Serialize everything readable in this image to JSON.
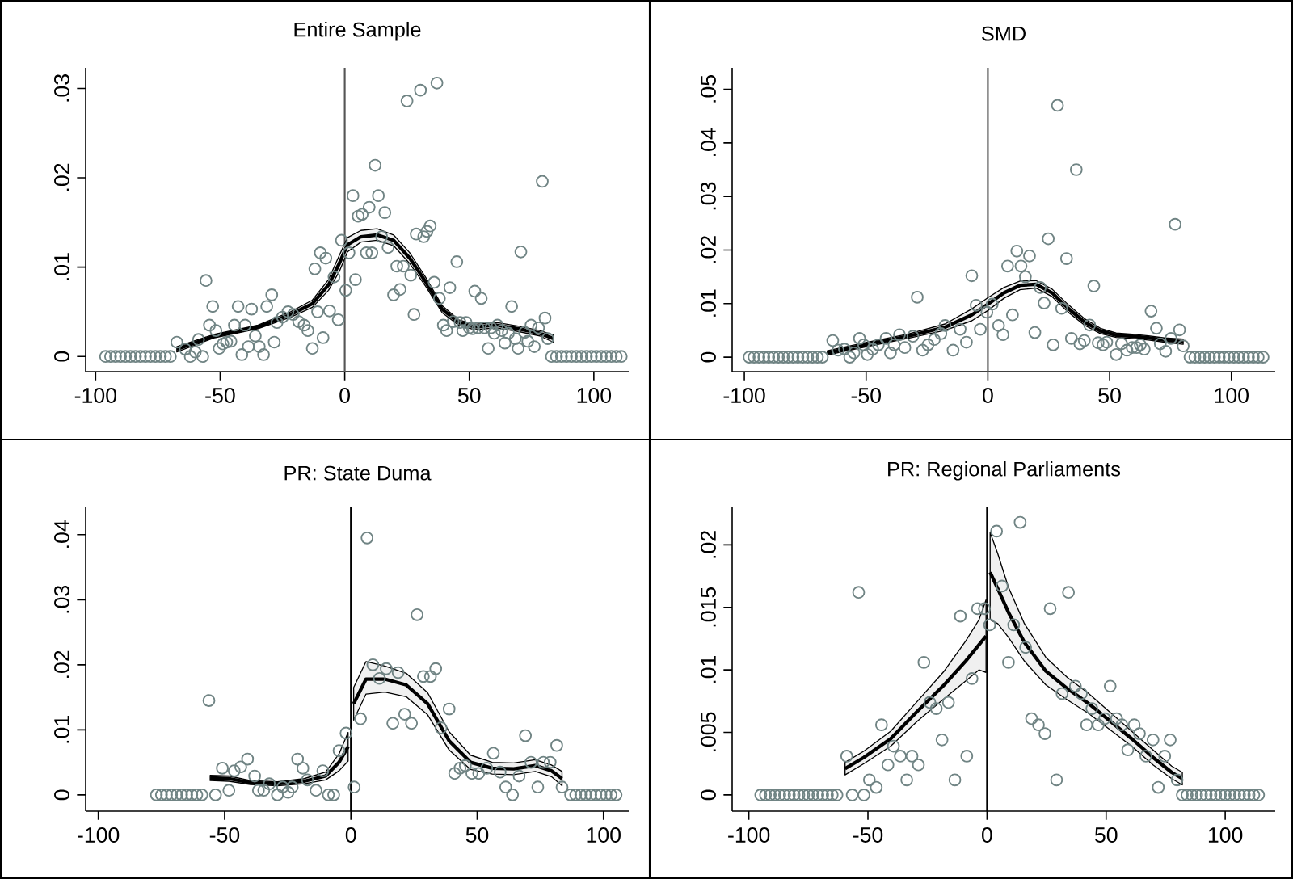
{
  "chart_data": [
    {
      "type": "scatter",
      "title": "Entire Sample",
      "xlim": [
        -104,
        114
      ],
      "xticks": [
        -100,
        -50,
        0,
        50,
        100
      ],
      "ylim": [
        -0.0017,
        0.0323
      ],
      "yticks": [
        0,
        {
          "value": 0.01,
          "label": ".01"
        },
        {
          "value": 0.02,
          "label": ".02"
        },
        {
          "value": 0.03,
          "label": ".03"
        }
      ],
      "ref_lines": [
        {
          "axis": "x",
          "value": 0,
          "color": "#555555"
        }
      ],
      "series": [
        {
          "color": "#708484",
          "marker": "circle",
          "x": [
            -96,
            -94,
            -92,
            -90,
            -88,
            -86,
            -84,
            -82,
            -80,
            -78,
            -76,
            -74,
            -72,
            -70,
            -67.4,
            -64,
            -62,
            -60,
            -58.7,
            -57,
            -55.7,
            -54.3,
            -53,
            -51.7,
            -50.4,
            -48.9,
            -47.4,
            -45.7,
            -44.3,
            -42.8,
            -41.3,
            -40,
            -38.7,
            -37.4,
            -35.9,
            -34.3,
            -32.6,
            -31.3,
            -29.3,
            -28.3,
            -27.2,
            -25,
            -22.8,
            -20.7,
            -18.5,
            -16.3,
            -14.8,
            -13,
            -12,
            -10.9,
            -9.8,
            -8.7,
            -7.6,
            -6.1,
            -4.3,
            -2.6,
            -1.3,
            0.4,
            1.7,
            3.3,
            4.3,
            5.4,
            7,
            8.7,
            9.8,
            10.9,
            12.2,
            13.5,
            14.8,
            16.1,
            17.4,
            19.6,
            20.9,
            22.2,
            23.5,
            25,
            26.5,
            27.8,
            28.7,
            30.4,
            31.7,
            33,
            34.3,
            35.9,
            37,
            38,
            39.6,
            40.9,
            42.2,
            43.5,
            45,
            46.3,
            47.4,
            48.7,
            50,
            51.3,
            52.2,
            53.5,
            54.8,
            56.1,
            57.6,
            58.7,
            60,
            61.3,
            63,
            64.3,
            65.7,
            67,
            68.5,
            69.6,
            70.7,
            72.2,
            73.5,
            74.8,
            76.1,
            77.8,
            79.3,
            80.4,
            81.5,
            83,
            85,
            87,
            89,
            91,
            93,
            95,
            97,
            99,
            101,
            103,
            105,
            107,
            109,
            111
          ],
          "values": [
            0,
            0,
            0,
            0,
            0,
            0,
            0,
            0,
            0,
            0,
            0,
            0,
            0,
            0,
            0.0016,
            0.0008,
            0,
            0.0005,
            0.0019,
            0,
            0.0085,
            0.0035,
            0.0056,
            0.0029,
            0.0009,
            0.0014,
            0.0016,
            0.0017,
            0.0035,
            0.0056,
            0.0002,
            0.0035,
            0.0011,
            0.0053,
            0.0023,
            0.0011,
            0.0002,
            0.0056,
            0.0069,
            0.0016,
            0.0038,
            0.0044,
            0.005,
            0.0047,
            0.0039,
            0.0035,
            0.0029,
            0.0009,
            0.0098,
            0.005,
            0.0116,
            0.0021,
            0.011,
            0.0051,
            0.0089,
            0.0041,
            0.013,
            0.0074,
            0.0116,
            0.018,
            0.0086,
            0.0157,
            0.0159,
            0.0116,
            0.0167,
            0.0116,
            0.0214,
            0.018,
            0.0134,
            0.0161,
            0.0122,
            0.0069,
            0.0101,
            0.0075,
            0.0101,
            0.0286,
            0.0091,
            0.0047,
            0.0137,
            0.0298,
            0.0134,
            0.014,
            0.0146,
            0.0083,
            0.0306,
            0.0065,
            0.0035,
            0.0029,
            0.0077,
            0.0039,
            0.0106,
            0.0038,
            0.0029,
            0.0038,
            0.0032,
            0.0031,
            0.0073,
            0.0032,
            0.0065,
            0.0032,
            0.0009,
            0.0032,
            0.0026,
            0.0035,
            0.0029,
            0.0015,
            0.0026,
            0.0056,
            0.002,
            0.0009,
            0.0117,
            0.0027,
            0.0017,
            0.0035,
            0.0011,
            0.0032,
            0.0196,
            0.0043,
            0.002,
            0,
            0,
            0,
            0,
            0,
            0,
            0,
            0,
            0,
            0,
            0,
            0,
            0,
            0,
            0
          ]
        },
        {
          "type": "line",
          "color": "#000000",
          "x": [
            -67.4,
            -52.2,
            -34.8,
            -21.7,
            -13,
            -6.5,
            -2.2,
            1.1,
            6.5,
            13,
            19.6,
            26.1,
            32.6,
            39.1,
            45.7,
            52.2,
            60.9,
            69.6,
            78.3,
            83.7
          ],
          "values": [
            0.0008,
            0.0023,
            0.0033,
            0.0047,
            0.0059,
            0.008,
            0.0104,
            0.0125,
            0.0134,
            0.0136,
            0.013,
            0.011,
            0.0083,
            0.0053,
            0.0038,
            0.0033,
            0.0035,
            0.0031,
            0.0026,
            0.002
          ],
          "lower": [
            0.0005,
            0.0021,
            0.0031,
            0.0044,
            0.0055,
            0.0074,
            0.0095,
            0.0117,
            0.0128,
            0.013,
            0.0124,
            0.0104,
            0.0078,
            0.0049,
            0.0035,
            0.003,
            0.0032,
            0.0028,
            0.0023,
            0.0016
          ],
          "upper": [
            0.0011,
            0.0025,
            0.0035,
            0.005,
            0.0063,
            0.0086,
            0.0113,
            0.0133,
            0.0141,
            0.0143,
            0.0136,
            0.0116,
            0.0088,
            0.0057,
            0.0041,
            0.0036,
            0.0038,
            0.0034,
            0.0029,
            0.0024
          ]
        }
      ]
    },
    {
      "type": "scatter",
      "title": "SMD",
      "xlim": [
        -105,
        118
      ],
      "xticks": [
        -100,
        -50,
        0,
        50,
        100
      ],
      "ylim": [
        -0.0027,
        0.054
      ],
      "yticks": [
        0,
        {
          "value": 0.01,
          "label": ".01"
        },
        {
          "value": 0.02,
          "label": ".02"
        },
        {
          "value": 0.03,
          "label": ".03"
        },
        {
          "value": 0.04,
          "label": ".04"
        },
        {
          "value": 0.05,
          "label": ".05"
        }
      ],
      "ref_lines": [
        {
          "axis": "x",
          "value": 0,
          "color": "#555555"
        }
      ],
      "series": [
        {
          "color": "#708484",
          "marker": "circle",
          "x": [
            -98,
            -96,
            -94,
            -92,
            -90,
            -88,
            -86,
            -84,
            -82,
            -80,
            -78,
            -76,
            -74,
            -72,
            -70,
            -68,
            -63.7,
            -61.5,
            -58.9,
            -56.7,
            -55,
            -52.7,
            -51,
            -49.5,
            -47.3,
            -45,
            -41.8,
            -40,
            -38.5,
            -36.3,
            -34.1,
            -30.8,
            -29,
            -26.8,
            -24.6,
            -22,
            -19.3,
            -17.6,
            -14.3,
            -11.4,
            -8.8,
            -6.6,
            -4.8,
            -3.1,
            -0.4,
            1.8,
            4.4,
            6.2,
            8.1,
            10.1,
            11.9,
            13.6,
            15.4,
            17.1,
            19.3,
            21.5,
            23.1,
            24.8,
            26.8,
            28.6,
            30.3,
            32.3,
            34.3,
            36.3,
            37.8,
            39.6,
            41.8,
            43.5,
            45.3,
            47.3,
            48.8,
            52.7,
            54.9,
            57.1,
            59.3,
            61.1,
            62.6,
            64.2,
            67,
            69.2,
            70.8,
            73,
            75.2,
            76.9,
            78.7,
            80.2,
            83,
            85,
            87,
            89,
            91,
            93,
            95,
            97,
            99,
            101,
            103,
            105,
            107,
            109,
            111,
            113
          ],
          "values": [
            0,
            0,
            0,
            0,
            0,
            0,
            0,
            0,
            0,
            0,
            0,
            0,
            0,
            0,
            0,
            0,
            0.0031,
            0.0013,
            0.0015,
            0,
            0.0008,
            0.0035,
            0.0023,
            0.0005,
            0.0015,
            0.0023,
            0.0035,
            0.0008,
            0.0023,
            0.0042,
            0.0018,
            0.0039,
            0.0112,
            0.0013,
            0.0023,
            0.0033,
            0.0044,
            0.0059,
            0.0013,
            0.0052,
            0.0028,
            0.0152,
            0.0097,
            0.0052,
            0.0084,
            0.0099,
            0.0059,
            0.0042,
            0.017,
            0.0079,
            0.0198,
            0.017,
            0.015,
            0.0189,
            0.0046,
            0.013,
            0.0101,
            0.0221,
            0.0023,
            0.047,
            0.0091,
            0.0184,
            0.0035,
            0.035,
            0.0025,
            0.0031,
            0.006,
            0.0133,
            0.0027,
            0.0023,
            0.0028,
            0.0005,
            0.0025,
            0.0013,
            0.0018,
            0.0018,
            0.0023,
            0.0015,
            0.0086,
            0.0054,
            0.0025,
            0.0011,
            0.0035,
            0.0248,
            0.0051,
            0.0021,
            0,
            0,
            0,
            0,
            0,
            0,
            0,
            0,
            0,
            0,
            0,
            0,
            0,
            0,
            0,
            0
          ]
        },
        {
          "type": "line",
          "color": "#000000",
          "x": [
            -65.9,
            -50.5,
            -33,
            -17.6,
            -6.6,
            0,
            6.6,
            13.2,
            19.8,
            26.4,
            33,
            39.6,
            46.2,
            52.7,
            59.3,
            65.9,
            72.5,
            80.2
          ],
          "values": [
            0.0008,
            0.0023,
            0.0039,
            0.0056,
            0.0079,
            0.0099,
            0.012,
            0.0134,
            0.0136,
            0.012,
            0.0091,
            0.0066,
            0.0049,
            0.0041,
            0.0039,
            0.0036,
            0.0032,
            0.0029
          ],
          "lower": [
            0.0004,
            0.0019,
            0.0035,
            0.005,
            0.0068,
            0.0087,
            0.011,
            0.0126,
            0.0129,
            0.0113,
            0.0084,
            0.006,
            0.0044,
            0.0037,
            0.0035,
            0.0032,
            0.0028,
            0.0024
          ],
          "upper": [
            0.0012,
            0.0027,
            0.0043,
            0.0062,
            0.009,
            0.0111,
            0.013,
            0.0142,
            0.0143,
            0.0127,
            0.0098,
            0.0072,
            0.0054,
            0.0045,
            0.0043,
            0.004,
            0.0036,
            0.0034
          ]
        }
      ]
    },
    {
      "type": "scatter",
      "title": "PR: State Duma",
      "xlim": [
        -105,
        110
      ],
      "xticks": [
        -100,
        -50,
        0,
        50,
        100
      ],
      "ylim": [
        -0.0025,
        0.0442
      ],
      "yticks": [
        0,
        {
          "value": 0.01,
          "label": ".01"
        },
        {
          "value": 0.02,
          "label": ".02"
        },
        {
          "value": 0.03,
          "label": ".03"
        },
        {
          "value": 0.04,
          "label": ".04"
        }
      ],
      "ref_lines": [
        {
          "axis": "x",
          "value": 0,
          "color": "#000000"
        }
      ],
      "series": [
        {
          "color": "#708484",
          "marker": "circle",
          "x": [
            -77,
            -75,
            -73,
            -71,
            -69,
            -67,
            -65,
            -63,
            -61,
            -59,
            -56.2,
            -53.6,
            -50.9,
            -48.3,
            -46.2,
            -43.6,
            -40.9,
            -38.1,
            -36.6,
            -34.5,
            -32.3,
            -29.1,
            -27,
            -24.9,
            -23.2,
            -21.1,
            -19,
            -17.2,
            -13.8,
            -11.1,
            -8.9,
            -6.8,
            -4.7,
            -1.9,
            1.3,
            3.8,
            6.4,
            8.7,
            11.3,
            14,
            16.6,
            18.7,
            21.3,
            24,
            26.2,
            28.7,
            31.5,
            33.6,
            35.7,
            38.9,
            41.1,
            43.2,
            45.3,
            47.9,
            50.6,
            53.8,
            56.4,
            59.1,
            61.3,
            64,
            66.6,
            69.1,
            71.3,
            74,
            76.2,
            78.9,
            81.5,
            83.6,
            87,
            89,
            91,
            93,
            95,
            97,
            99,
            101,
            103,
            105
          ],
          "values": [
            0,
            0,
            0,
            0,
            0,
            0,
            0,
            0,
            0,
            0,
            0.0145,
            0,
            0.0041,
            0.0007,
            0.0037,
            0.0043,
            0.0055,
            0.0029,
            0.0007,
            0.0007,
            0.0017,
            0,
            0.0012,
            0.0004,
            0.0012,
            0.0055,
            0.0041,
            0.0023,
            0.0007,
            0.0037,
            0,
            0,
            0.0068,
            0.0095,
            0.0012,
            0.0117,
            0.0395,
            0.02,
            0.0179,
            0.0194,
            0.011,
            0.0188,
            0.0124,
            0.011,
            0.0277,
            0.0182,
            0.0182,
            0.0194,
            0.0103,
            0.0132,
            0.0033,
            0.0041,
            0.0045,
            0.0033,
            0.0033,
            0.0041,
            0.0064,
            0.0035,
            0.0012,
            0,
            0.0029,
            0.0091,
            0.005,
            0.0012,
            0.005,
            0.005,
            0.0076,
            0.0012,
            0,
            0,
            0,
            0,
            0,
            0,
            0,
            0,
            0,
            0
          ]
        },
        {
          "type": "line",
          "color": "#000000",
          "x": [
            -55.7,
            -48.3,
            -39.8,
            -29.1,
            -18.5,
            -10,
            -4.7,
            -1.1
          ],
          "values": [
            0.0026,
            0.0025,
            0.0019,
            0.0017,
            0.0021,
            0.0029,
            0.005,
            0.0074
          ],
          "lower": [
            0.0022,
            0.0021,
            0.0016,
            0.0014,
            0.0017,
            0.0023,
            0.0037,
            0.0052
          ],
          "upper": [
            0.003,
            0.0029,
            0.0022,
            0.002,
            0.0025,
            0.0035,
            0.0063,
            0.0096
          ]
        },
        {
          "type": "line",
          "color": "#000000",
          "x": [
            1.1,
            6,
            13.4,
            21.9,
            30.4,
            38.9,
            47.4,
            56,
            64.5,
            73,
            79.4,
            83.6
          ],
          "values": [
            0.014,
            0.0178,
            0.0178,
            0.0169,
            0.014,
            0.0083,
            0.005,
            0.0041,
            0.004,
            0.0045,
            0.0037,
            0.0025
          ],
          "lower": [
            0.0115,
            0.0155,
            0.0158,
            0.0151,
            0.0123,
            0.0069,
            0.0039,
            0.0032,
            0.0031,
            0.0036,
            0.0028,
            0.0014
          ],
          "upper": [
            0.0165,
            0.0205,
            0.0198,
            0.0187,
            0.0157,
            0.0097,
            0.0061,
            0.005,
            0.0049,
            0.0054,
            0.0046,
            0.0036
          ]
        }
      ]
    },
    {
      "type": "scatter",
      "title": "PR: Regional Parliaments",
      "xlim": [
        -107,
        121
      ],
      "xticks": [
        -100,
        -50,
        0,
        50,
        100
      ],
      "ylim": [
        -0.0013,
        0.023
      ],
      "yticks": [
        0,
        {
          "value": 0.005,
          "label": ".005"
        },
        {
          "value": 0.01,
          "label": ".01"
        },
        {
          "value": 0.015,
          "label": ".015"
        },
        {
          "value": 0.02,
          "label": ".02"
        }
      ],
      "ref_lines": [
        {
          "axis": "x",
          "value": 0,
          "color": "#000000"
        }
      ],
      "series": [
        {
          "color": "#708484",
          "marker": "circle",
          "x": [
            -95,
            -93,
            -91,
            -89,
            -87,
            -85,
            -83,
            -81,
            -79,
            -77,
            -75,
            -73,
            -71,
            -69,
            -67,
            -65,
            -63,
            -58.9,
            -56.6,
            -53.9,
            -51.7,
            -49.4,
            -46.5,
            -44.3,
            -41.6,
            -39.3,
            -36.4,
            -33.7,
            -31.5,
            -28.8,
            -26.5,
            -24,
            -21.3,
            -18.9,
            -16.2,
            -13.5,
            -11.2,
            -8.5,
            -6.3,
            -4,
            -1.1,
            1.1,
            4,
            6.3,
            9,
            11.2,
            13.9,
            16.2,
            18.7,
            21.6,
            24.3,
            26.5,
            29.2,
            31.5,
            34.2,
            37.1,
            39.6,
            41.8,
            44,
            46.7,
            49.4,
            51.7,
            54.4,
            56.6,
            59.1,
            61.8,
            64,
            66.7,
            69.7,
            71.9,
            74.6,
            76.9,
            79.8,
            82,
            84,
            86,
            88,
            90,
            92,
            94,
            96,
            98,
            100,
            102,
            104,
            106,
            108,
            110,
            112,
            114
          ],
          "values": [
            0,
            0,
            0,
            0,
            0,
            0,
            0,
            0,
            0,
            0,
            0,
            0,
            0,
            0,
            0,
            0,
            0,
            0.0031,
            0,
            0.0162,
            0,
            0.0012,
            0.0006,
            0.0056,
            0.0024,
            0.0039,
            0.0031,
            0.0012,
            0.0031,
            0.0024,
            0.0106,
            0.0074,
            0.0069,
            0.0044,
            0.0074,
            0.0012,
            0.0143,
            0.0031,
            0.0093,
            0.0149,
            0.0149,
            0.0136,
            0.0211,
            0.0167,
            0.0106,
            0.0136,
            0.0218,
            0.0118,
            0.0061,
            0.0056,
            0.0049,
            0.0149,
            0.0012,
            0.0081,
            0.0162,
            0.0087,
            0.0081,
            0.0056,
            0.0069,
            0.0056,
            0.0061,
            0.0087,
            0.0061,
            0.0056,
            0.0036,
            0.0056,
            0.0049,
            0.0031,
            0.0044,
            0.0006,
            0.0031,
            0.0044,
            0.0012,
            0,
            0,
            0,
            0,
            0,
            0,
            0,
            0,
            0,
            0,
            0,
            0,
            0,
            0,
            0,
            0,
            0
          ]
        },
        {
          "type": "line",
          "color": "#000000",
          "x": [
            -59.6,
            -51.7,
            -40.4,
            -29.2,
            -18,
            -9,
            -3.4,
            -0.4
          ],
          "values": [
            0.0021,
            0.003,
            0.0045,
            0.0067,
            0.0088,
            0.0107,
            0.012,
            0.0127
          ],
          "lower": [
            0.0016,
            0.0025,
            0.0039,
            0.0059,
            0.0077,
            0.0091,
            0.01,
            0.0098
          ],
          "upper": [
            0.0026,
            0.0035,
            0.0051,
            0.0075,
            0.0099,
            0.0123,
            0.014,
            0.0156
          ]
        },
        {
          "type": "line",
          "color": "#000000",
          "x": [
            1.3,
            4.5,
            9,
            15.7,
            24.7,
            33.7,
            42.7,
            51.7,
            60.7,
            69.7,
            77.5,
            82
          ],
          "values": [
            0.0178,
            0.0165,
            0.0146,
            0.0122,
            0.0099,
            0.0085,
            0.0073,
            0.0059,
            0.0045,
            0.003,
            0.0018,
            0.0013
          ],
          "lower": [
            0.014,
            0.0137,
            0.0126,
            0.0107,
            0.0088,
            0.0076,
            0.0065,
            0.0052,
            0.0039,
            0.0024,
            0.0013,
            0.0008
          ],
          "upper": [
            0.021,
            0.0193,
            0.0166,
            0.0137,
            0.011,
            0.0094,
            0.0081,
            0.0066,
            0.0051,
            0.0036,
            0.0023,
            0.0018
          ]
        }
      ]
    }
  ]
}
